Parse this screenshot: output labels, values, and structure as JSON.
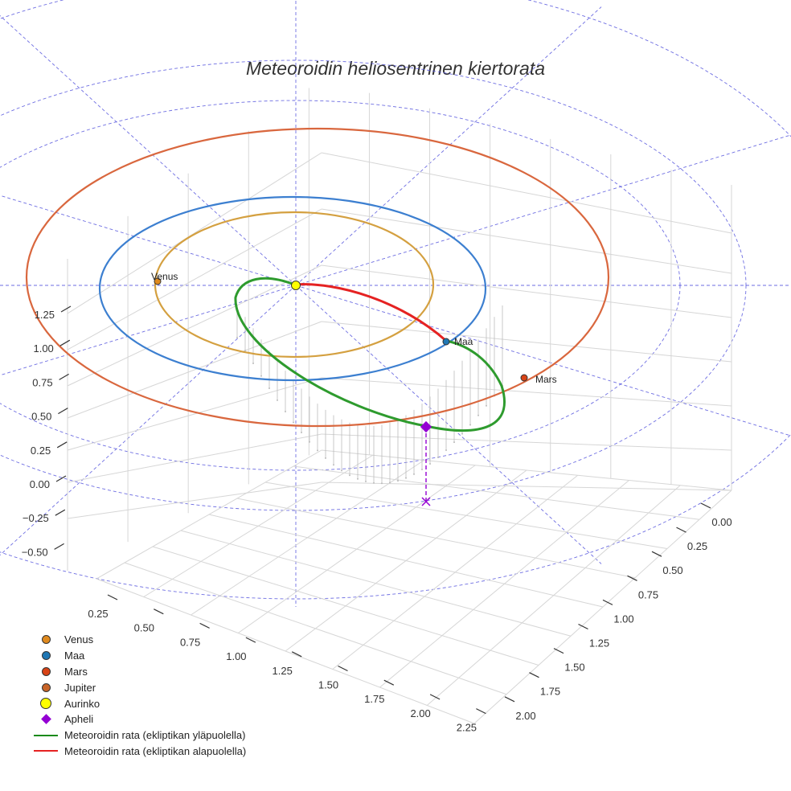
{
  "title": "Meteoroidin heliosentrinen kiertorata",
  "chart_data": {
    "type": "3d-line-scatter",
    "title": "Meteoroidin heliosentrinen kiertorata",
    "axes": {
      "z_ticks": [
        "1.25",
        "1.00",
        "0.75",
        "0.50",
        "0.25",
        "0.00",
        "−0.25",
        "−0.50"
      ],
      "x_ticks": [
        "0.25",
        "0.50",
        "0.75",
        "1.00",
        "1.25",
        "1.50",
        "1.75",
        "2.00",
        "2.25"
      ],
      "y_ticks": [
        "0.00",
        "0.25",
        "0.50",
        "0.75",
        "1.00",
        "1.25",
        "1.50",
        "1.75",
        "2.00"
      ]
    },
    "planet_orbits": [
      {
        "name": "Venus",
        "radius_au": 0.72,
        "color": "#d4a040"
      },
      {
        "name": "Maa",
        "radius_au": 1.0,
        "color": "#3c7fd0"
      },
      {
        "name": "Mars",
        "radius_au": 1.52,
        "color": "#d9673e"
      }
    ],
    "points": [
      {
        "name": "Venus",
        "label": "Venus",
        "color": "#e08a1e"
      },
      {
        "name": "Maa",
        "label": "Maa",
        "color": "#1f77b4"
      },
      {
        "name": "Mars",
        "label": "Mars",
        "color": "#d84315"
      },
      {
        "name": "Aurinko",
        "label": "",
        "color": "#ffff00"
      },
      {
        "name": "Apheli",
        "label": "",
        "color": "#9400d3"
      }
    ],
    "meteoroid_orbit": {
      "above_ecliptic_color": "#2e9b2e",
      "below_ecliptic_color": "#e52222"
    }
  },
  "legend": [
    {
      "label": "Venus",
      "type": "dot",
      "color": "#e08a1e"
    },
    {
      "label": "Maa",
      "type": "dot",
      "color": "#1f77b4"
    },
    {
      "label": "Mars",
      "type": "dot",
      "color": "#d84315"
    },
    {
      "label": "Jupiter",
      "type": "dot",
      "color": "#c86428"
    },
    {
      "label": "Aurinko",
      "type": "sun",
      "color": "#ffff00"
    },
    {
      "label": "Apheli",
      "type": "diamond",
      "color": "#9400d3"
    },
    {
      "label": "Meteoroidin rata (ekliptikan yläpuolella)",
      "type": "line",
      "color": "#1a8a1a"
    },
    {
      "label": "Meteoroidin rata (ekliptikan alapuolella)",
      "type": "line",
      "color": "#e52222"
    }
  ]
}
